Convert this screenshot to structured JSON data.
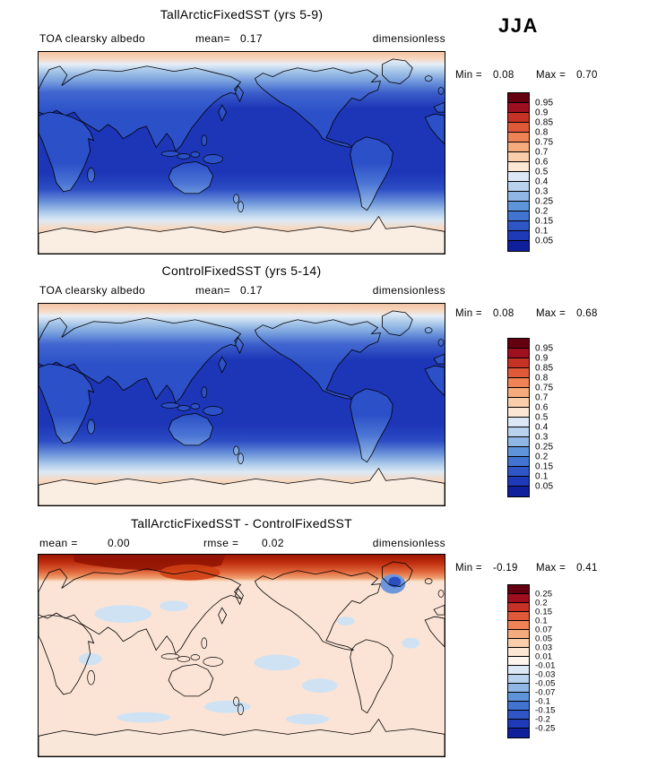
{
  "season_label": "JJA",
  "panels": [
    {
      "title": "TallArcticFixedSST (yrs 5-9)",
      "variable_label": "TOA clearsky albedo",
      "mean_label": "mean=",
      "mean_value": "0.17",
      "units_label": "dimensionless",
      "min_label": "Min =",
      "min_value": "0.08",
      "max_label": "Max =",
      "max_value": "0.70"
    },
    {
      "title": "ControlFixedSST (yrs 5-14)",
      "variable_label": "TOA clearsky albedo",
      "mean_label": "mean=",
      "mean_value": "0.17",
      "units_label": "dimensionless",
      "min_label": "Min =",
      "min_value": "0.08",
      "max_label": "Max =",
      "max_value": "0.68"
    },
    {
      "title": "TallArcticFixedSST - ControlFixedSST",
      "mean_label": "mean =",
      "mean_value": "0.00",
      "rmse_label": "rmse =",
      "rmse_value": "0.02",
      "units_label": "dimensionless",
      "min_label": "Min =",
      "min_value": "-0.19",
      "max_label": "Max =",
      "max_value": "0.41"
    }
  ],
  "colorbars": {
    "albedo": {
      "ticks": [
        "0.95",
        "0.9",
        "0.85",
        "0.8",
        "0.75",
        "0.7",
        "0.6",
        "0.5",
        "0.4",
        "0.3",
        "0.25",
        "0.2",
        "0.15",
        "0.1",
        "0.05"
      ],
      "colors": [
        "#650011",
        "#9e0f20",
        "#c63226",
        "#e05a3a",
        "#ef8356",
        "#f6ab7e",
        "#facdab",
        "#fce6d4",
        "#dce8f6",
        "#b8d2ee",
        "#8fb6e4",
        "#6094da",
        "#4273d0",
        "#2f55c6",
        "#1f3ab8",
        "#101f9b"
      ]
    },
    "difference": {
      "ticks": [
        "0.25",
        "0.2",
        "0.15",
        "0.1",
        "0.07",
        "0.05",
        "0.03",
        "0.01",
        "-0.01",
        "-0.03",
        "-0.05",
        "-0.07",
        "-0.1",
        "-0.15",
        "-0.2",
        "-0.25"
      ],
      "colors": [
        "#650011",
        "#9e0f20",
        "#c63226",
        "#e05a3a",
        "#ef8356",
        "#f6ab7e",
        "#facdab",
        "#fce6d4",
        "#fdf5ee",
        "#dce8f6",
        "#b8d2ee",
        "#8fb6e4",
        "#6094da",
        "#4273d0",
        "#2f55c6",
        "#1f3ab8",
        "#101f9b"
      ]
    }
  },
  "chart_data": [
    {
      "type": "filled_contour_map",
      "title": "TallArcticFixedSST (yrs 5-9)",
      "variable": "TOA clearsky albedo",
      "units": "dimensionless",
      "season": "JJA",
      "projection": "global cylindrical equidistant, Pacific-centered",
      "stats": {
        "mean": 0.17,
        "min": 0.08,
        "max": 0.7
      },
      "contour_levels": [
        0.05,
        0.1,
        0.15,
        0.2,
        0.25,
        0.3,
        0.4,
        0.5,
        0.6,
        0.7,
        0.75,
        0.8,
        0.85,
        0.9,
        0.95
      ],
      "palette": "dark blue (low) through pale to dark red (high)",
      "pattern_summary": "Lowest albedo (0.05-0.15, dark blue) over tropical and mid-latitude oceans; slightly higher over land; high albedo (0.5-0.7, pale orange) poleward of ~60 degrees in both hemispheres and over Greenland and Antarctica."
    },
    {
      "type": "filled_contour_map",
      "title": "ControlFixedSST (yrs 5-14)",
      "variable": "TOA clearsky albedo",
      "units": "dimensionless",
      "season": "JJA",
      "projection": "global cylindrical equidistant, Pacific-centered",
      "stats": {
        "mean": 0.17,
        "min": 0.08,
        "max": 0.68
      },
      "contour_levels": [
        0.05,
        0.1,
        0.15,
        0.2,
        0.25,
        0.3,
        0.4,
        0.5,
        0.6,
        0.7,
        0.75,
        0.8,
        0.85,
        0.9,
        0.95
      ],
      "palette": "dark blue (low) through pale to dark red (high)",
      "pattern_summary": "Nearly identical to TallArcticFixedSST: low albedo over tropical/mid-latitude oceans, high albedo bands at polar latitudes."
    },
    {
      "type": "filled_contour_map",
      "title": "TallArcticFixedSST - ControlFixedSST",
      "variable": "TOA clearsky albedo difference",
      "units": "dimensionless",
      "season": "JJA",
      "projection": "global cylindrical equidistant, Pacific-centered",
      "stats": {
        "mean": 0.0,
        "rmse": 0.02,
        "min": -0.19,
        "max": 0.41
      },
      "contour_levels": [
        -0.25,
        -0.2,
        -0.15,
        -0.1,
        -0.07,
        -0.05,
        -0.03,
        -0.01,
        0.01,
        0.03,
        0.05,
        0.07,
        0.1,
        0.15,
        0.2,
        0.25
      ],
      "palette": "blue (negative) through near-white to dark red (positive)",
      "pattern_summary": "Near-zero differences (within +/-0.01, pale) over most of the globe; strong positive differences (up to 0.41, dark red) across the entire Arctic; localized negative differences (down to -0.19, blue) near Baffin Bay / Davis Strait; scattered weak negative patches in mid-latitudes and the Southern Ocean."
    }
  ]
}
